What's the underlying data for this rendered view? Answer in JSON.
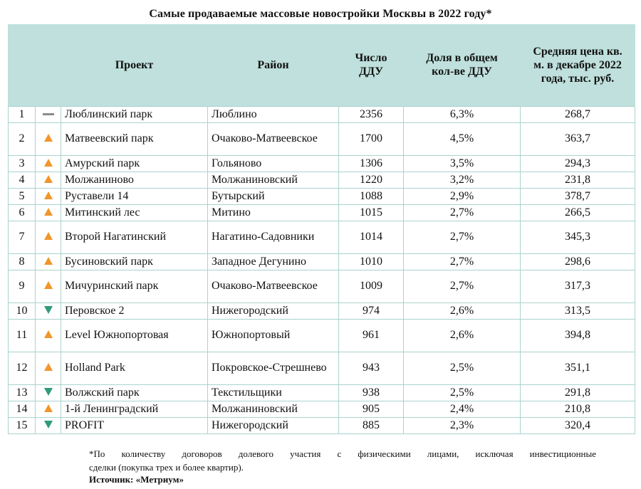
{
  "title": "Самые продаваемые массовые новостройки Москвы в 2022 году*",
  "headers": {
    "project": "Проект",
    "district": "Район",
    "count": "Число ДДУ",
    "share": "Доля в общем кол-ве ДДУ",
    "price": "Средняя цена кв. м. в декабре 2022 года, тыс. руб."
  },
  "trend_colors": {
    "up": "#f0962b",
    "down": "#2f9a7c",
    "same": "#8c8c8c"
  },
  "rows": [
    {
      "n": "1",
      "trend": "same",
      "project": "Люблинский парк",
      "district": "Люблино",
      "count": "2356",
      "share": "6,3%",
      "price": "268,7"
    },
    {
      "n": "2",
      "trend": "up",
      "project": "Матвеевский парк",
      "district": "Очаково-Матвеевское",
      "count": "1700",
      "share": "4,5%",
      "price": "363,7"
    },
    {
      "n": "3",
      "trend": "up",
      "project": "Амурский парк",
      "district": "Гольяново",
      "count": "1306",
      "share": "3,5%",
      "price": "294,3"
    },
    {
      "n": "4",
      "trend": "up",
      "project": "Молжаниново",
      "district": "Молжаниновский",
      "count": "1220",
      "share": "3,2%",
      "price": "231,8"
    },
    {
      "n": "5",
      "trend": "up",
      "project": "Руставели 14",
      "district": "Бутырский",
      "count": "1088",
      "share": "2,9%",
      "price": "378,7"
    },
    {
      "n": "6",
      "trend": "up",
      "project": "Митинский лес",
      "district": "Митино",
      "count": "1015",
      "share": "2,7%",
      "price": "266,5"
    },
    {
      "n": "7",
      "trend": "up",
      "project": "Второй Нагатинский",
      "district": "Нагатино-Садовники",
      "count": "1014",
      "share": "2,7%",
      "price": "345,3"
    },
    {
      "n": "8",
      "trend": "up",
      "project": "Бусиновский парк",
      "district": "Западное Дегунино",
      "count": "1010",
      "share": "2,7%",
      "price": "298,6"
    },
    {
      "n": "9",
      "trend": "up",
      "project": "Мичуринский парк",
      "district": "Очаково-Матвеевское",
      "count": "1009",
      "share": "2,7%",
      "price": "317,3"
    },
    {
      "n": "10",
      "trend": "down",
      "project": "Перовское 2",
      "district": "Нижегородский",
      "count": "974",
      "share": "2,6%",
      "price": "313,5"
    },
    {
      "n": "11",
      "trend": "up",
      "project": "Level Южнопортовая",
      "district": "Южнопортовый",
      "count": "961",
      "share": "2,6%",
      "price": "394,8"
    },
    {
      "n": "12",
      "trend": "up",
      "project": "Holland Park",
      "district": "Покровское-Стрешнево",
      "count": "943",
      "share": "2,5%",
      "price": "351,1"
    },
    {
      "n": "13",
      "trend": "down",
      "project": "Волжский парк",
      "district": "Текстильщики",
      "count": "938",
      "share": "2,5%",
      "price": "291,8"
    },
    {
      "n": "14",
      "trend": "up",
      "project": "1-й Ленинградский",
      "district": "Молжаниновский",
      "count": "905",
      "share": "2,4%",
      "price": "210,8"
    },
    {
      "n": "15",
      "trend": "down",
      "project": "PROFIT",
      "district": "Нижегородский",
      "count": "885",
      "share": "2,3%",
      "price": "320,4"
    }
  ],
  "footnote_line1": "*По количеству договоров долевого участия с физическими лицами, исключая инвестиционные",
  "footnote_line2": "сделки (покупка трех и более квартир).",
  "source": "Источник: «Метриум»"
}
